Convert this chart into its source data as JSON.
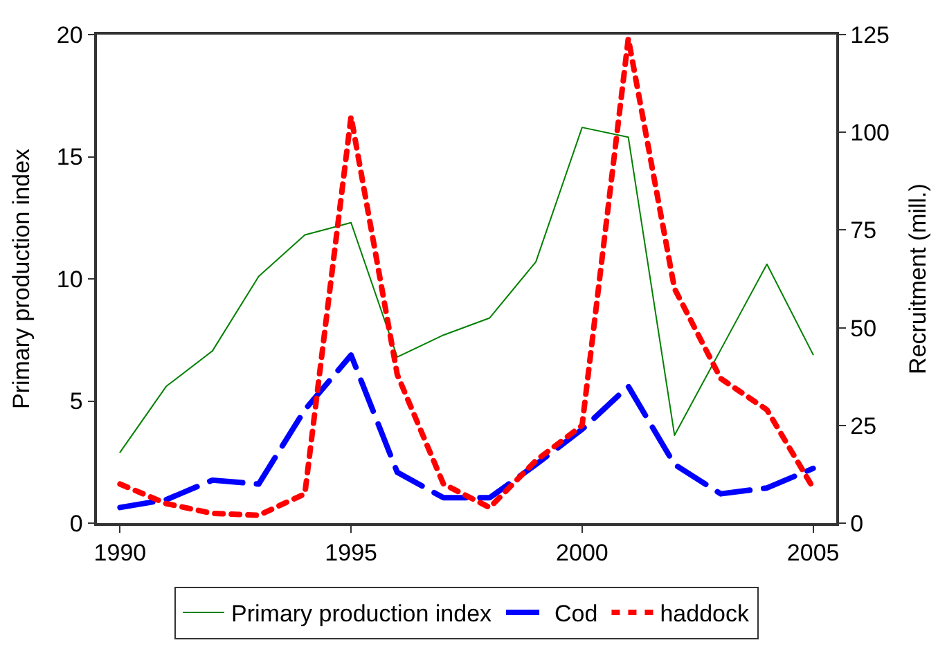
{
  "chart_data": {
    "type": "line",
    "ylabel": "Primary production index",
    "y2label": "Recruitment (mill.)",
    "x": [
      1990,
      1991,
      1992,
      1993,
      1994,
      1995,
      1996,
      1997,
      1998,
      1999,
      2000,
      2001,
      2002,
      2003,
      2004,
      2005
    ],
    "xlim": [
      1989.5,
      2005.5
    ],
    "xticks": [
      1990,
      1995,
      2000,
      2005
    ],
    "ylim": [
      0,
      20
    ],
    "yticks": [
      0,
      5,
      10,
      15,
      20
    ],
    "y2lim": [
      0,
      125
    ],
    "y2ticks": [
      0,
      25,
      50,
      75,
      100,
      125
    ],
    "legend": "bottom",
    "marker": "none",
    "series": [
      {
        "name": "Primary production index",
        "color": "#008000",
        "line_style": "solid",
        "values": [
          2.9,
          5.6,
          7.05,
          10.1,
          11.8,
          12.3,
          6.8,
          7.7,
          8.4,
          10.7,
          16.2,
          15.8,
          3.6,
          7.1,
          10.6,
          6.9
        ]
      },
      {
        "name": "Cod",
        "color": "#0000ff",
        "line_style": "dashed",
        "axis": "y2",
        "values": [
          4,
          6,
          11,
          10,
          29,
          43,
          13,
          6.5,
          6.5,
          15,
          24,
          35,
          15,
          7.5,
          9,
          14
        ]
      },
      {
        "name": "haddock",
        "color": "#ff0000",
        "line_style": "dotted",
        "axis": "y2",
        "values": [
          10,
          5,
          2.5,
          2,
          7.5,
          104,
          38,
          10,
          4,
          16,
          25,
          124,
          60,
          37,
          29,
          9
        ]
      }
    ]
  }
}
